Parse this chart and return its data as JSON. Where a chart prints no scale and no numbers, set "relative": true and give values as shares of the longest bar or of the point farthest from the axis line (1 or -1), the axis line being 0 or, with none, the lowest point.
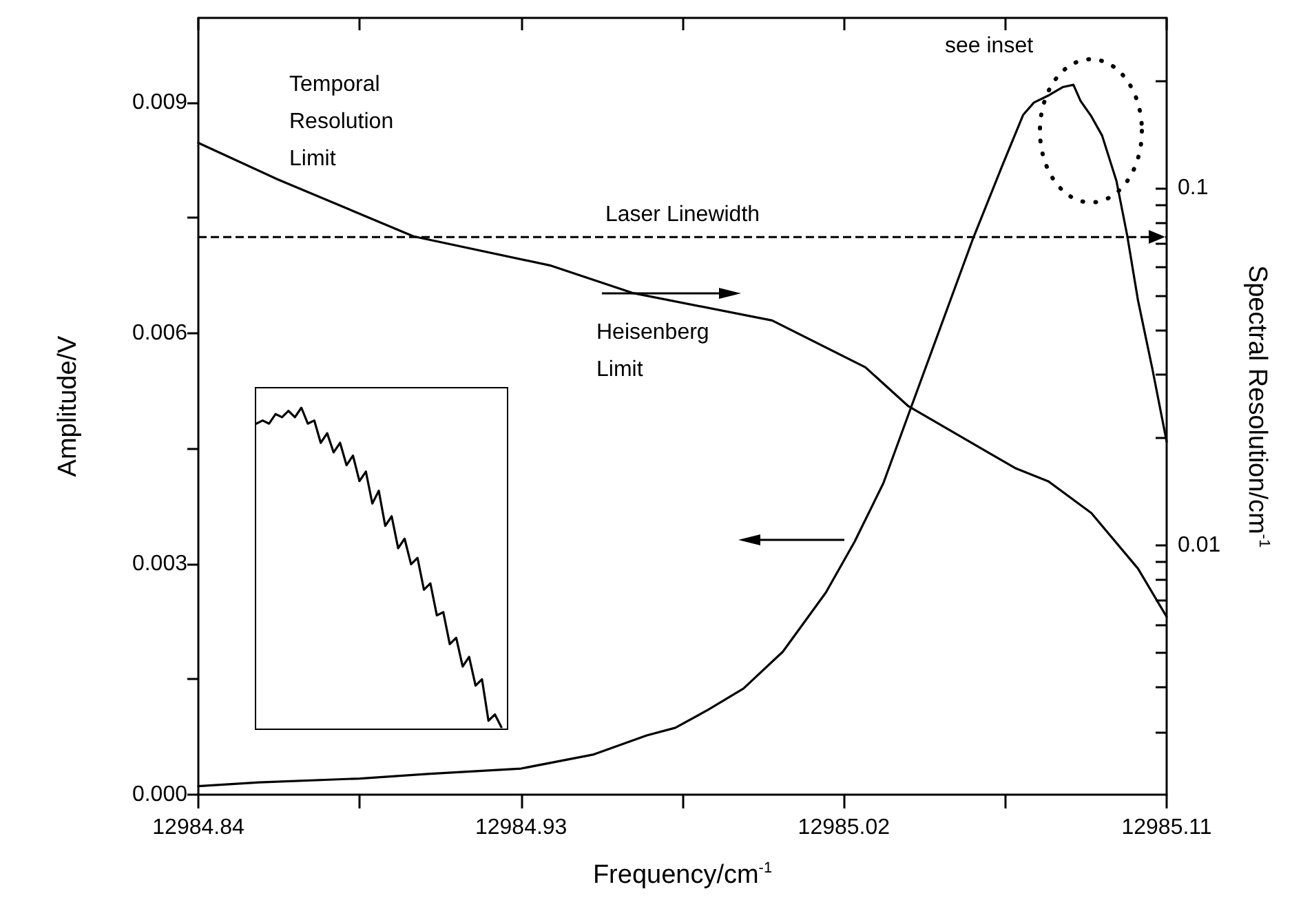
{
  "chart_data": [
    {
      "type": "line",
      "xlabel": "Frequency/cm$^{-1}$",
      "ylabel": "Amplitude/V",
      "y2label": "Spectral Resolution/cm$^{-1}$",
      "annotations": [
        "Temporal\nResolution\nLimit",
        "Heisenberg\nLimit",
        "see inset"
      ],
      "xlim": [
        12984.84,
        12985.11
      ],
      "xticks": [
        12984.84,
        {
          "value": 12984.885,
          "label": null
        },
        12984.93,
        {
          "value": 12984.975,
          "label": null
        },
        12985.02,
        {
          "value": 12985.065,
          "label": null
        },
        12985.11
      ],
      "ylim": [
        0,
        0.0101
      ],
      "yticks": [
        {
          "value": 0,
          "label": "0.000"
        },
        {
          "value": 0.0015,
          "label": null
        },
        0.003,
        {
          "value": 0.0045,
          "label": null
        },
        0.006,
        {
          "value": 0.0075,
          "label": null
        },
        0.009
      ],
      "y2lim": [
        0.002,
        0.3
      ],
      "y2ticks": [
        {
          "value": 0.003,
          "label": null
        },
        {
          "value": 0.004,
          "label": null
        },
        {
          "value": 0.005,
          "label": null
        },
        {
          "value": 0.006,
          "label": null
        },
        {
          "value": 0.007,
          "label": null
        },
        {
          "value": 0.008,
          "label": null
        },
        {
          "value": 0.009,
          "label": null
        },
        0.01,
        {
          "value": 0.02,
          "label": null
        },
        {
          "value": 0.03,
          "label": null
        },
        {
          "value": 0.04,
          "label": null
        },
        {
          "value": 0.05,
          "label": null
        },
        {
          "value": 0.06,
          "label": null
        },
        {
          "value": 0.07,
          "label": null
        },
        {
          "value": 0.08,
          "label": null
        },
        {
          "value": 0.09,
          "label": null
        },
        0.1,
        {
          "value": 0.2,
          "label": null
        }
      ],
      "log": "y2",
      "grid": false,
      "marker": "none",
      "line_style": "solid",
      "ref_lines": [
        {
          "axis": "y2",
          "value": 0.073,
          "label": "Laser Linewidth",
          "line_style": "dashed",
          "color": "#000000"
        }
      ],
      "series": [
        {
          "color": "#000000",
          "x": [
            12984.84,
            12984.857,
            12984.885,
            12984.904,
            12984.93,
            12984.95,
            12984.965,
            12984.973,
            12984.982,
            12984.992,
            12985.003,
            12985.015,
            12985.023,
            12985.031,
            12985.039,
            12985.056,
            12985.064,
            12985.07,
            12985.073,
            12985.077,
            12985.081,
            12985.084,
            12985.086,
            12985.089,
            12985.092,
            12985.096,
            12985.099,
            12985.102,
            12985.106,
            12985.11
          ],
          "values": [
            0.00011,
            0.00016,
            0.00021,
            0.00027,
            0.00034,
            0.00052,
            0.00077,
            0.00087,
            0.0011,
            0.00138,
            0.00186,
            0.00263,
            0.00329,
            0.00405,
            0.00507,
            0.00723,
            0.00816,
            0.00884,
            0.009,
            0.00909,
            0.0092,
            0.00923,
            0.00902,
            0.00882,
            0.00857,
            0.00798,
            0.00727,
            0.00643,
            0.00554,
            0.00459
          ]
        },
        {
          "color": "#000000",
          "axis": "y2",
          "x": [
            12984.84,
            12984.862,
            12984.9,
            12984.938,
            12984.961,
            12985.0,
            12985.026,
            12985.038,
            12985.061,
            12985.068,
            12985.077,
            12985.089,
            12985.102,
            12985.11
          ],
          "values": [
            0.134,
            0.106,
            0.0733,
            0.0608,
            0.0509,
            0.0426,
            0.0315,
            0.0245,
            0.018,
            0.0164,
            0.0151,
            0.0123,
            0.0086,
            0.0063
          ]
        }
      ]
    },
    {
      "type": "line",
      "relative": true,
      "marker": "none",
      "categories": [
        null,
        null,
        null,
        null,
        null,
        null,
        null,
        null,
        null,
        null,
        null,
        null,
        null,
        null,
        null,
        null,
        null,
        null,
        null,
        null,
        null,
        null,
        null,
        null,
        null,
        null,
        null,
        null,
        null,
        null,
        null,
        null,
        null,
        null,
        null,
        null,
        null,
        null,
        null
      ],
      "series": [
        {
          "color": "#000000",
          "values": [
            0.95,
            0.96,
            0.95,
            0.98,
            0.97,
            0.99,
            0.97,
            1,
            0.95,
            0.96,
            0.89,
            0.92,
            0.86,
            0.89,
            0.82,
            0.85,
            0.77,
            0.8,
            0.7,
            0.74,
            0.63,
            0.66,
            0.56,
            0.59,
            0.51,
            0.53,
            0.43,
            0.45,
            0.35,
            0.36,
            0.26,
            0.28,
            0.19,
            0.22,
            0.13,
            0.15,
            0.02,
            0.04,
            0
          ]
        }
      ]
    }
  ]
}
